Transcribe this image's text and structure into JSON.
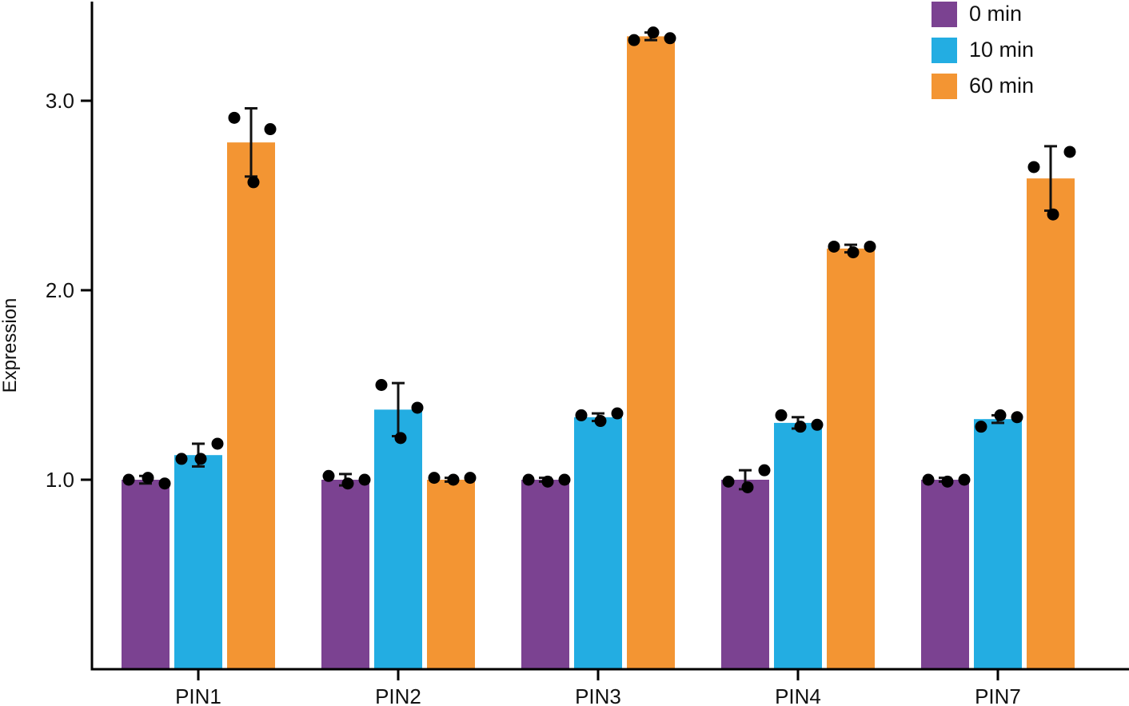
{
  "chart_data": {
    "type": "bar",
    "title": "",
    "xlabel": "",
    "ylabel": "Expression",
    "ylim": [
      0,
      3.5
    ],
    "yticks": [
      1.0,
      2.0,
      3.0
    ],
    "ytick_labels": [
      "1.0",
      "2.0",
      "3.0"
    ],
    "categories": [
      "PIN1",
      "PIN2",
      "PIN3",
      "PIN4",
      "PIN7"
    ],
    "legend_position": "top-right",
    "grid": false,
    "series": [
      {
        "name": "0 min",
        "color": "#7b4291",
        "values": [
          1.0,
          1.0,
          1.0,
          1.0,
          1.0
        ],
        "errors": [
          0.02,
          0.03,
          0.01,
          0.05,
          0.01
        ],
        "points": [
          [
            1.0,
            1.01,
            0.98
          ],
          [
            1.02,
            0.98,
            1.0
          ],
          [
            1.0,
            0.99,
            1.0
          ],
          [
            0.99,
            0.96,
            1.05
          ],
          [
            1.0,
            0.99,
            1.0
          ]
        ]
      },
      {
        "name": "10 min",
        "color": "#23ade2",
        "values": [
          1.13,
          1.37,
          1.33,
          1.3,
          1.32
        ],
        "errors": [
          0.06,
          0.14,
          0.02,
          0.03,
          0.02
        ],
        "points": [
          [
            1.11,
            1.11,
            1.19
          ],
          [
            1.5,
            1.22,
            1.38
          ],
          [
            1.34,
            1.31,
            1.35
          ],
          [
            1.34,
            1.28,
            1.29
          ],
          [
            1.28,
            1.34,
            1.33
          ]
        ]
      },
      {
        "name": "60 min",
        "color": "#f39533",
        "values": [
          2.78,
          1.0,
          3.34,
          2.22,
          2.59
        ],
        "errors": [
          0.18,
          0.01,
          0.02,
          0.02,
          0.17
        ],
        "points": [
          [
            2.91,
            2.57,
            2.85
          ],
          [
            1.01,
            1.0,
            1.01
          ],
          [
            3.32,
            3.36,
            3.33
          ],
          [
            2.23,
            2.2,
            2.23
          ],
          [
            2.65,
            2.4,
            2.73
          ]
        ]
      }
    ]
  }
}
